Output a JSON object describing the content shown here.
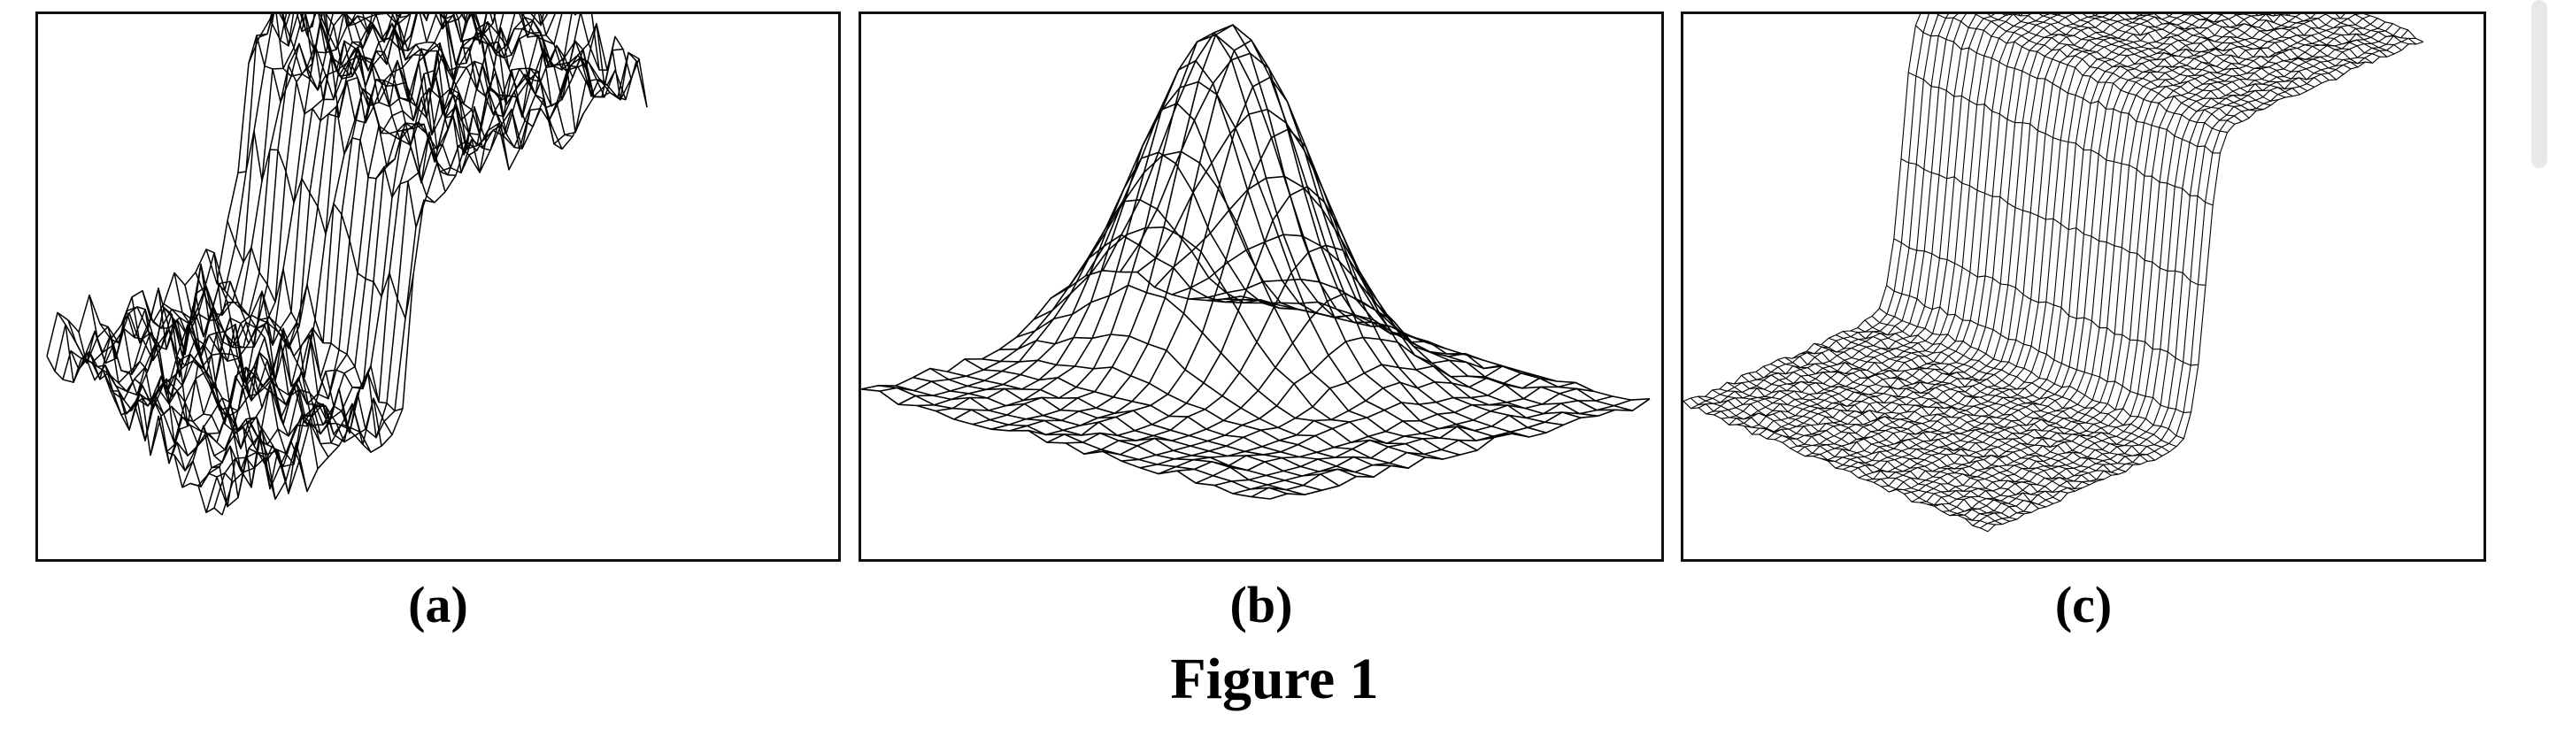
{
  "figure": {
    "title": "Figure 1",
    "panels": [
      {
        "id": "a",
        "label": "(a)",
        "surface": "noisy-step"
      },
      {
        "id": "b",
        "label": "(b)",
        "surface": "gaussian-peak"
      },
      {
        "id": "c",
        "label": "(c)",
        "surface": "smooth-step"
      }
    ]
  },
  "colors": {
    "line": "#000000",
    "background": "#ffffff",
    "border": "#111111"
  }
}
